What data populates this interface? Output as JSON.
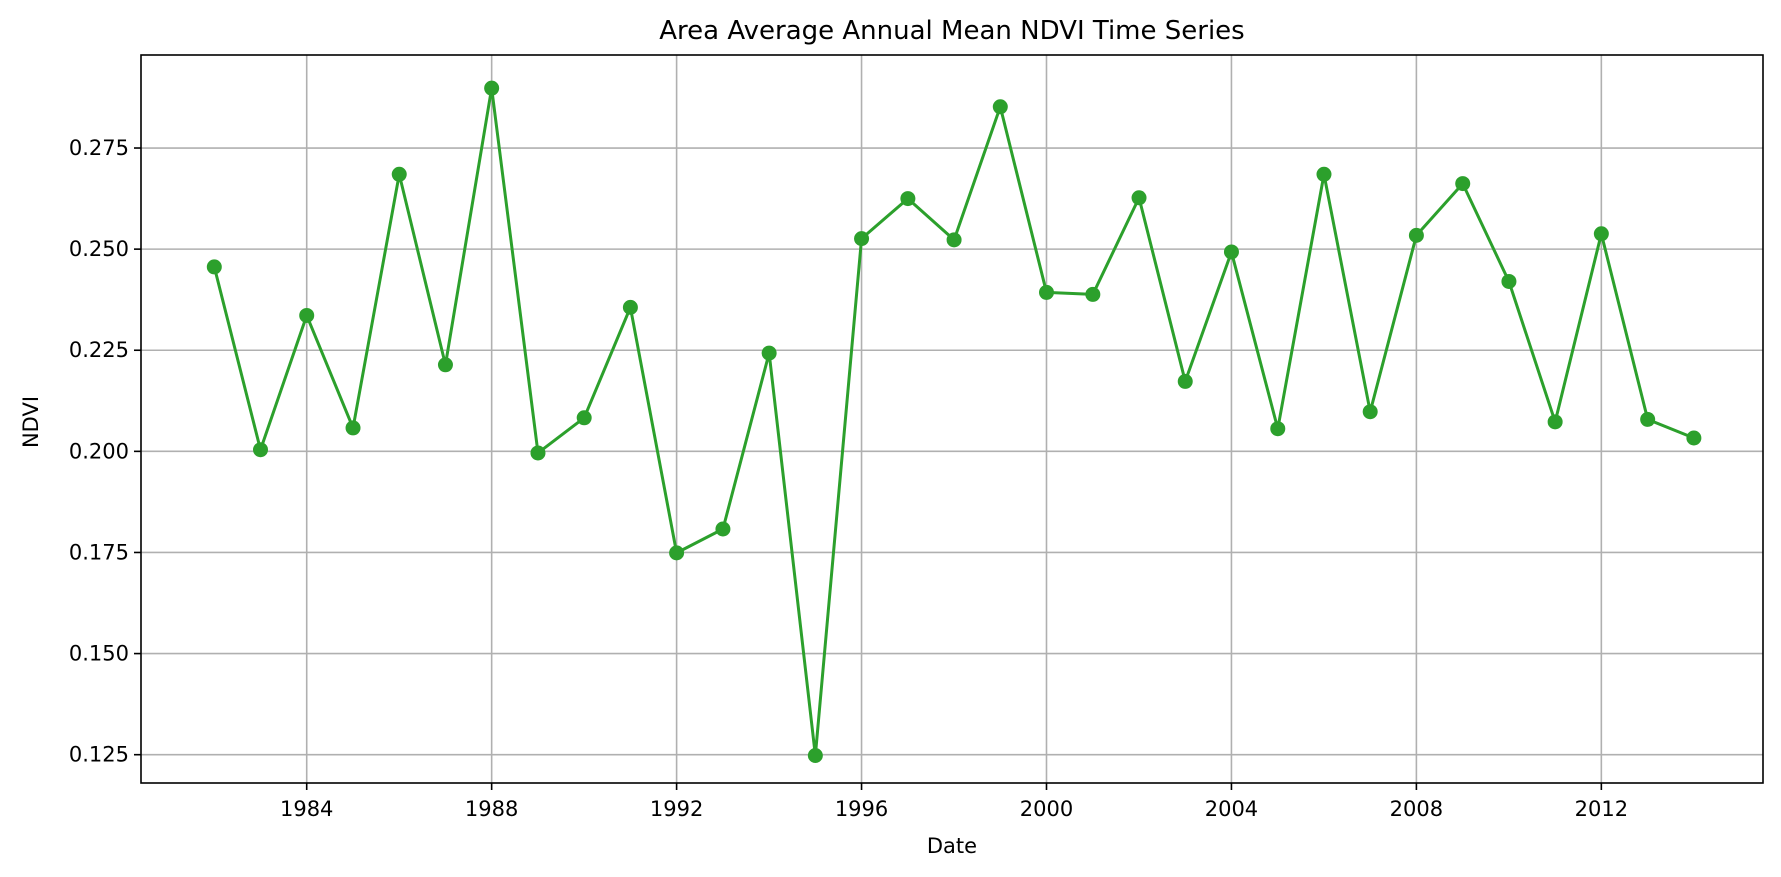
{
  "chart_data": {
    "type": "line",
    "title": "Area Average Annual Mean NDVI Time Series",
    "xlabel": "Date",
    "ylabel": "NDVI",
    "x_type": "date",
    "xlim": [
      "1980-06-01",
      "2015-07-01"
    ],
    "ylim": [
      0.118,
      0.298
    ],
    "x_ticks": [
      "1984",
      "1988",
      "1992",
      "1996",
      "2000",
      "2004",
      "2008",
      "2012"
    ],
    "y_ticks": [
      "0.125",
      "0.150",
      "0.175",
      "0.200",
      "0.225",
      "0.250",
      "0.275"
    ],
    "grid": true,
    "legend": "none",
    "series": [
      {
        "color": "#2ca02c",
        "marker": "circle",
        "x": [
          "1982-01-01",
          "1983-01-01",
          "1984-01-01",
          "1985-01-01",
          "1986-01-01",
          "1987-01-01",
          "1988-01-01",
          "1989-01-01",
          "1990-01-01",
          "1991-01-01",
          "1992-01-01",
          "1993-01-01",
          "1994-01-01",
          "1995-01-01",
          "1996-01-01",
          "1997-01-01",
          "1998-01-01",
          "1999-01-01",
          "2000-01-01",
          "2001-01-01",
          "2002-01-01",
          "2003-01-01",
          "2004-01-01",
          "2005-01-01",
          "2006-01-01",
          "2007-01-01",
          "2008-01-01",
          "2009-01-01",
          "2010-01-01",
          "2011-01-01",
          "2012-01-01",
          "2013-01-01",
          "2014-01-01"
        ],
        "y": [
          0.2456,
          0.2004,
          0.2336,
          0.2058,
          0.2685,
          0.2214,
          0.2898,
          0.1996,
          0.2083,
          0.2356,
          0.1749,
          0.1808,
          0.2243,
          0.1248,
          0.2526,
          0.2625,
          0.2523,
          0.2852,
          0.2393,
          0.2388,
          0.2627,
          0.2173,
          0.2493,
          0.2056,
          0.2685,
          0.2098,
          0.2534,
          0.2662,
          0.242,
          0.2073,
          0.2538,
          0.2079,
          0.2033
        ]
      }
    ]
  }
}
